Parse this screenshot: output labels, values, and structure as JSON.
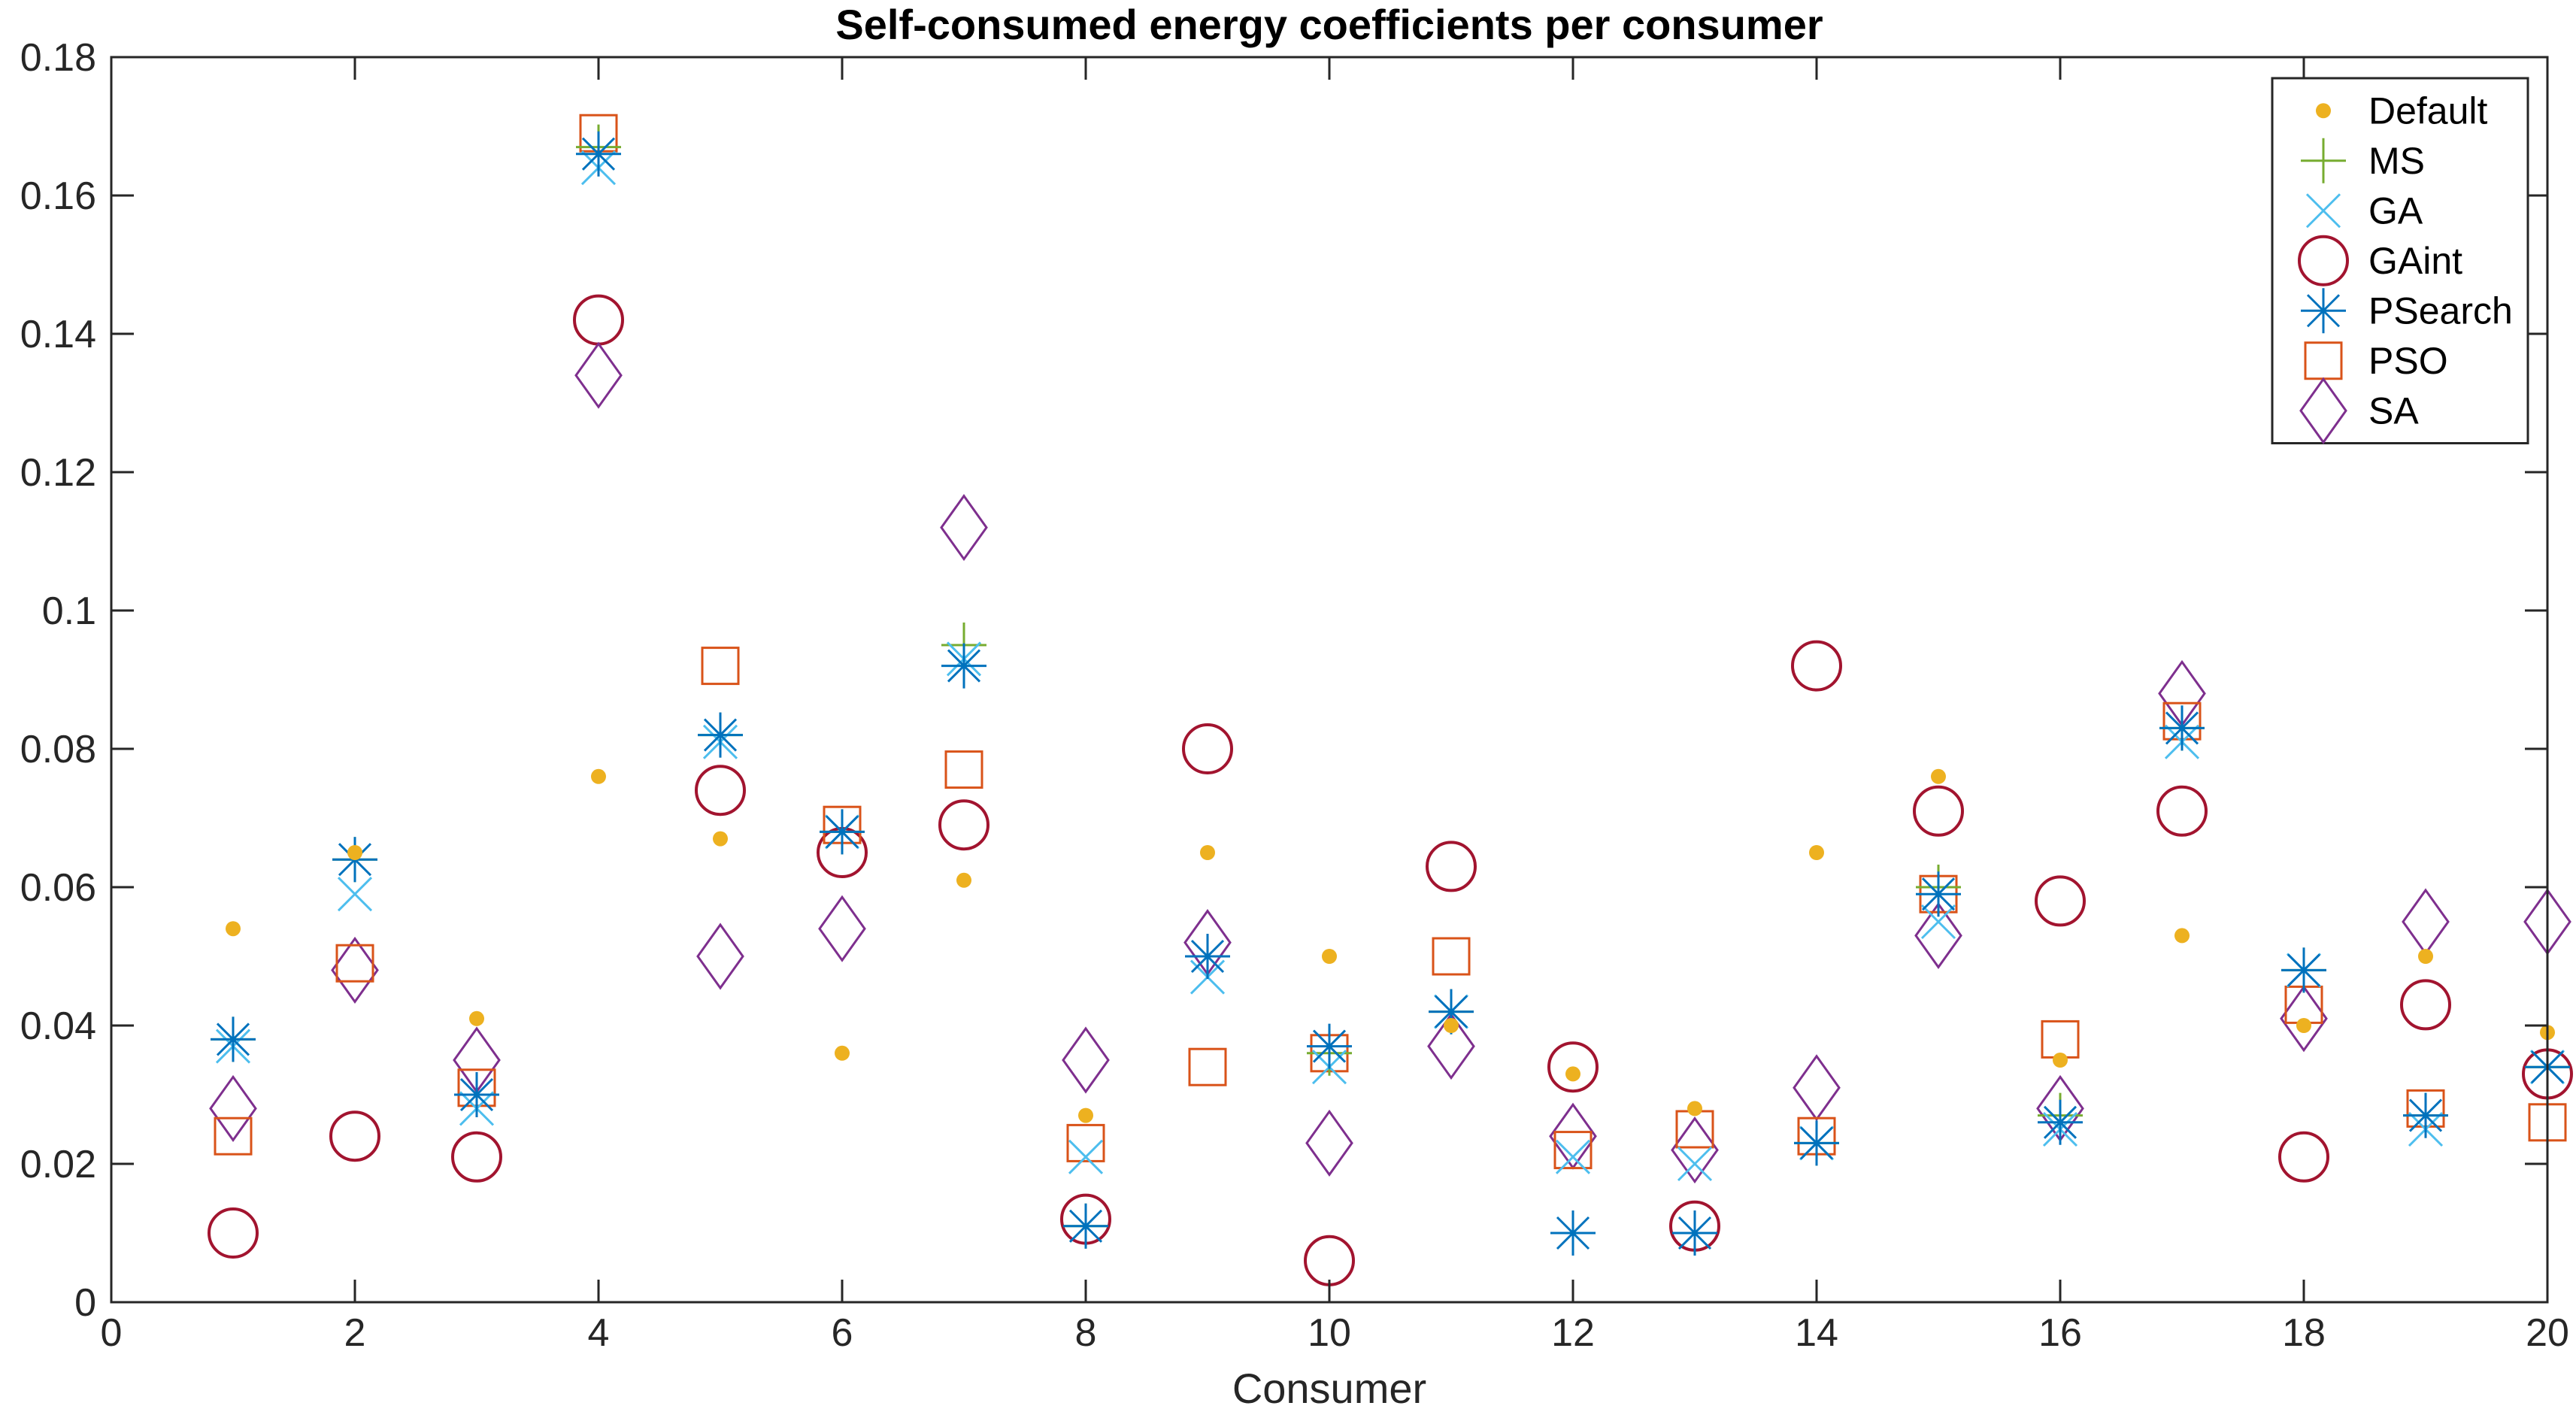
{
  "chart_data": {
    "type": "scatter",
    "title": "Self-consumed energy coefficients per consumer",
    "xlabel": "Consumer",
    "ylabel": "",
    "xlim": [
      0,
      20
    ],
    "ylim": [
      0,
      0.18
    ],
    "xticks": [
      0,
      2,
      4,
      6,
      8,
      10,
      12,
      14,
      16,
      18,
      20
    ],
    "xtick_labels": [
      "0",
      "2",
      "4",
      "6",
      "8",
      "10",
      "12",
      "14",
      "16",
      "18",
      "20"
    ],
    "yticks": [
      0,
      0.02,
      0.04,
      0.06,
      0.08,
      0.1,
      0.12,
      0.14,
      0.16,
      0.18
    ],
    "ytick_labels": [
      "0",
      "0.02",
      "0.04",
      "0.06",
      "0.08",
      "0.1",
      "0.12",
      "0.14",
      "0.16",
      "0.18"
    ],
    "grid": false,
    "legend_position": "top-right",
    "x": [
      1,
      2,
      3,
      4,
      5,
      6,
      7,
      8,
      9,
      10,
      11,
      12,
      13,
      14,
      15,
      16,
      17,
      18,
      19,
      20
    ],
    "series": [
      {
        "name": "Default",
        "marker": "dot",
        "color": "#EDB120",
        "values": [
          0.054,
          0.065,
          0.041,
          0.076,
          0.067,
          0.036,
          0.061,
          0.027,
          0.065,
          0.05,
          0.04,
          0.033,
          0.028,
          0.065,
          0.076,
          0.035,
          0.053,
          0.04,
          0.05,
          0.039
        ]
      },
      {
        "name": "MS",
        "marker": "plus",
        "color": "#77AC30",
        "values": [
          0.038,
          0.064,
          0.03,
          0.167,
          0.082,
          0.068,
          0.095,
          0.011,
          0.05,
          0.036,
          0.042,
          0.01,
          0.01,
          0.023,
          0.06,
          0.027,
          0.083,
          0.048,
          0.027,
          0.034
        ]
      },
      {
        "name": "GA",
        "marker": "x",
        "color": "#4DBEEE",
        "values": [
          0.037,
          0.059,
          0.028,
          0.164,
          0.081,
          0.068,
          0.093,
          0.021,
          0.047,
          0.034,
          0.042,
          0.021,
          0.02,
          0.023,
          0.055,
          0.025,
          0.081,
          0.048,
          0.025,
          0.034
        ]
      },
      {
        "name": "GAint",
        "marker": "circle",
        "color": "#A2142F",
        "values": [
          0.01,
          0.024,
          0.021,
          0.142,
          0.074,
          0.065,
          0.069,
          0.012,
          0.08,
          0.006,
          0.063,
          0.034,
          0.011,
          0.092,
          0.071,
          0.058,
          0.071,
          0.021,
          0.043,
          0.033
        ]
      },
      {
        "name": "PSearch",
        "marker": "asterisk",
        "color": "#0072BD",
        "values": [
          0.038,
          0.064,
          0.03,
          0.166,
          0.082,
          0.068,
          0.092,
          0.011,
          0.05,
          0.037,
          0.042,
          0.01,
          0.01,
          0.023,
          0.059,
          0.026,
          0.083,
          0.048,
          0.027,
          0.034
        ]
      },
      {
        "name": "PSO",
        "marker": "square",
        "color": "#D95319",
        "values": [
          0.024,
          0.049,
          0.031,
          0.169,
          0.092,
          0.069,
          0.077,
          0.023,
          0.034,
          0.036,
          0.05,
          0.022,
          0.025,
          0.024,
          0.059,
          0.038,
          0.084,
          0.043,
          0.028,
          0.026
        ]
      },
      {
        "name": "SA",
        "marker": "diamond",
        "color": "#7E2F8E",
        "values": [
          0.028,
          0.048,
          0.035,
          0.134,
          0.05,
          0.054,
          0.112,
          0.035,
          0.052,
          0.023,
          0.037,
          0.024,
          0.022,
          0.031,
          0.053,
          0.028,
          0.088,
          0.041,
          0.055,
          0.055
        ]
      }
    ]
  }
}
